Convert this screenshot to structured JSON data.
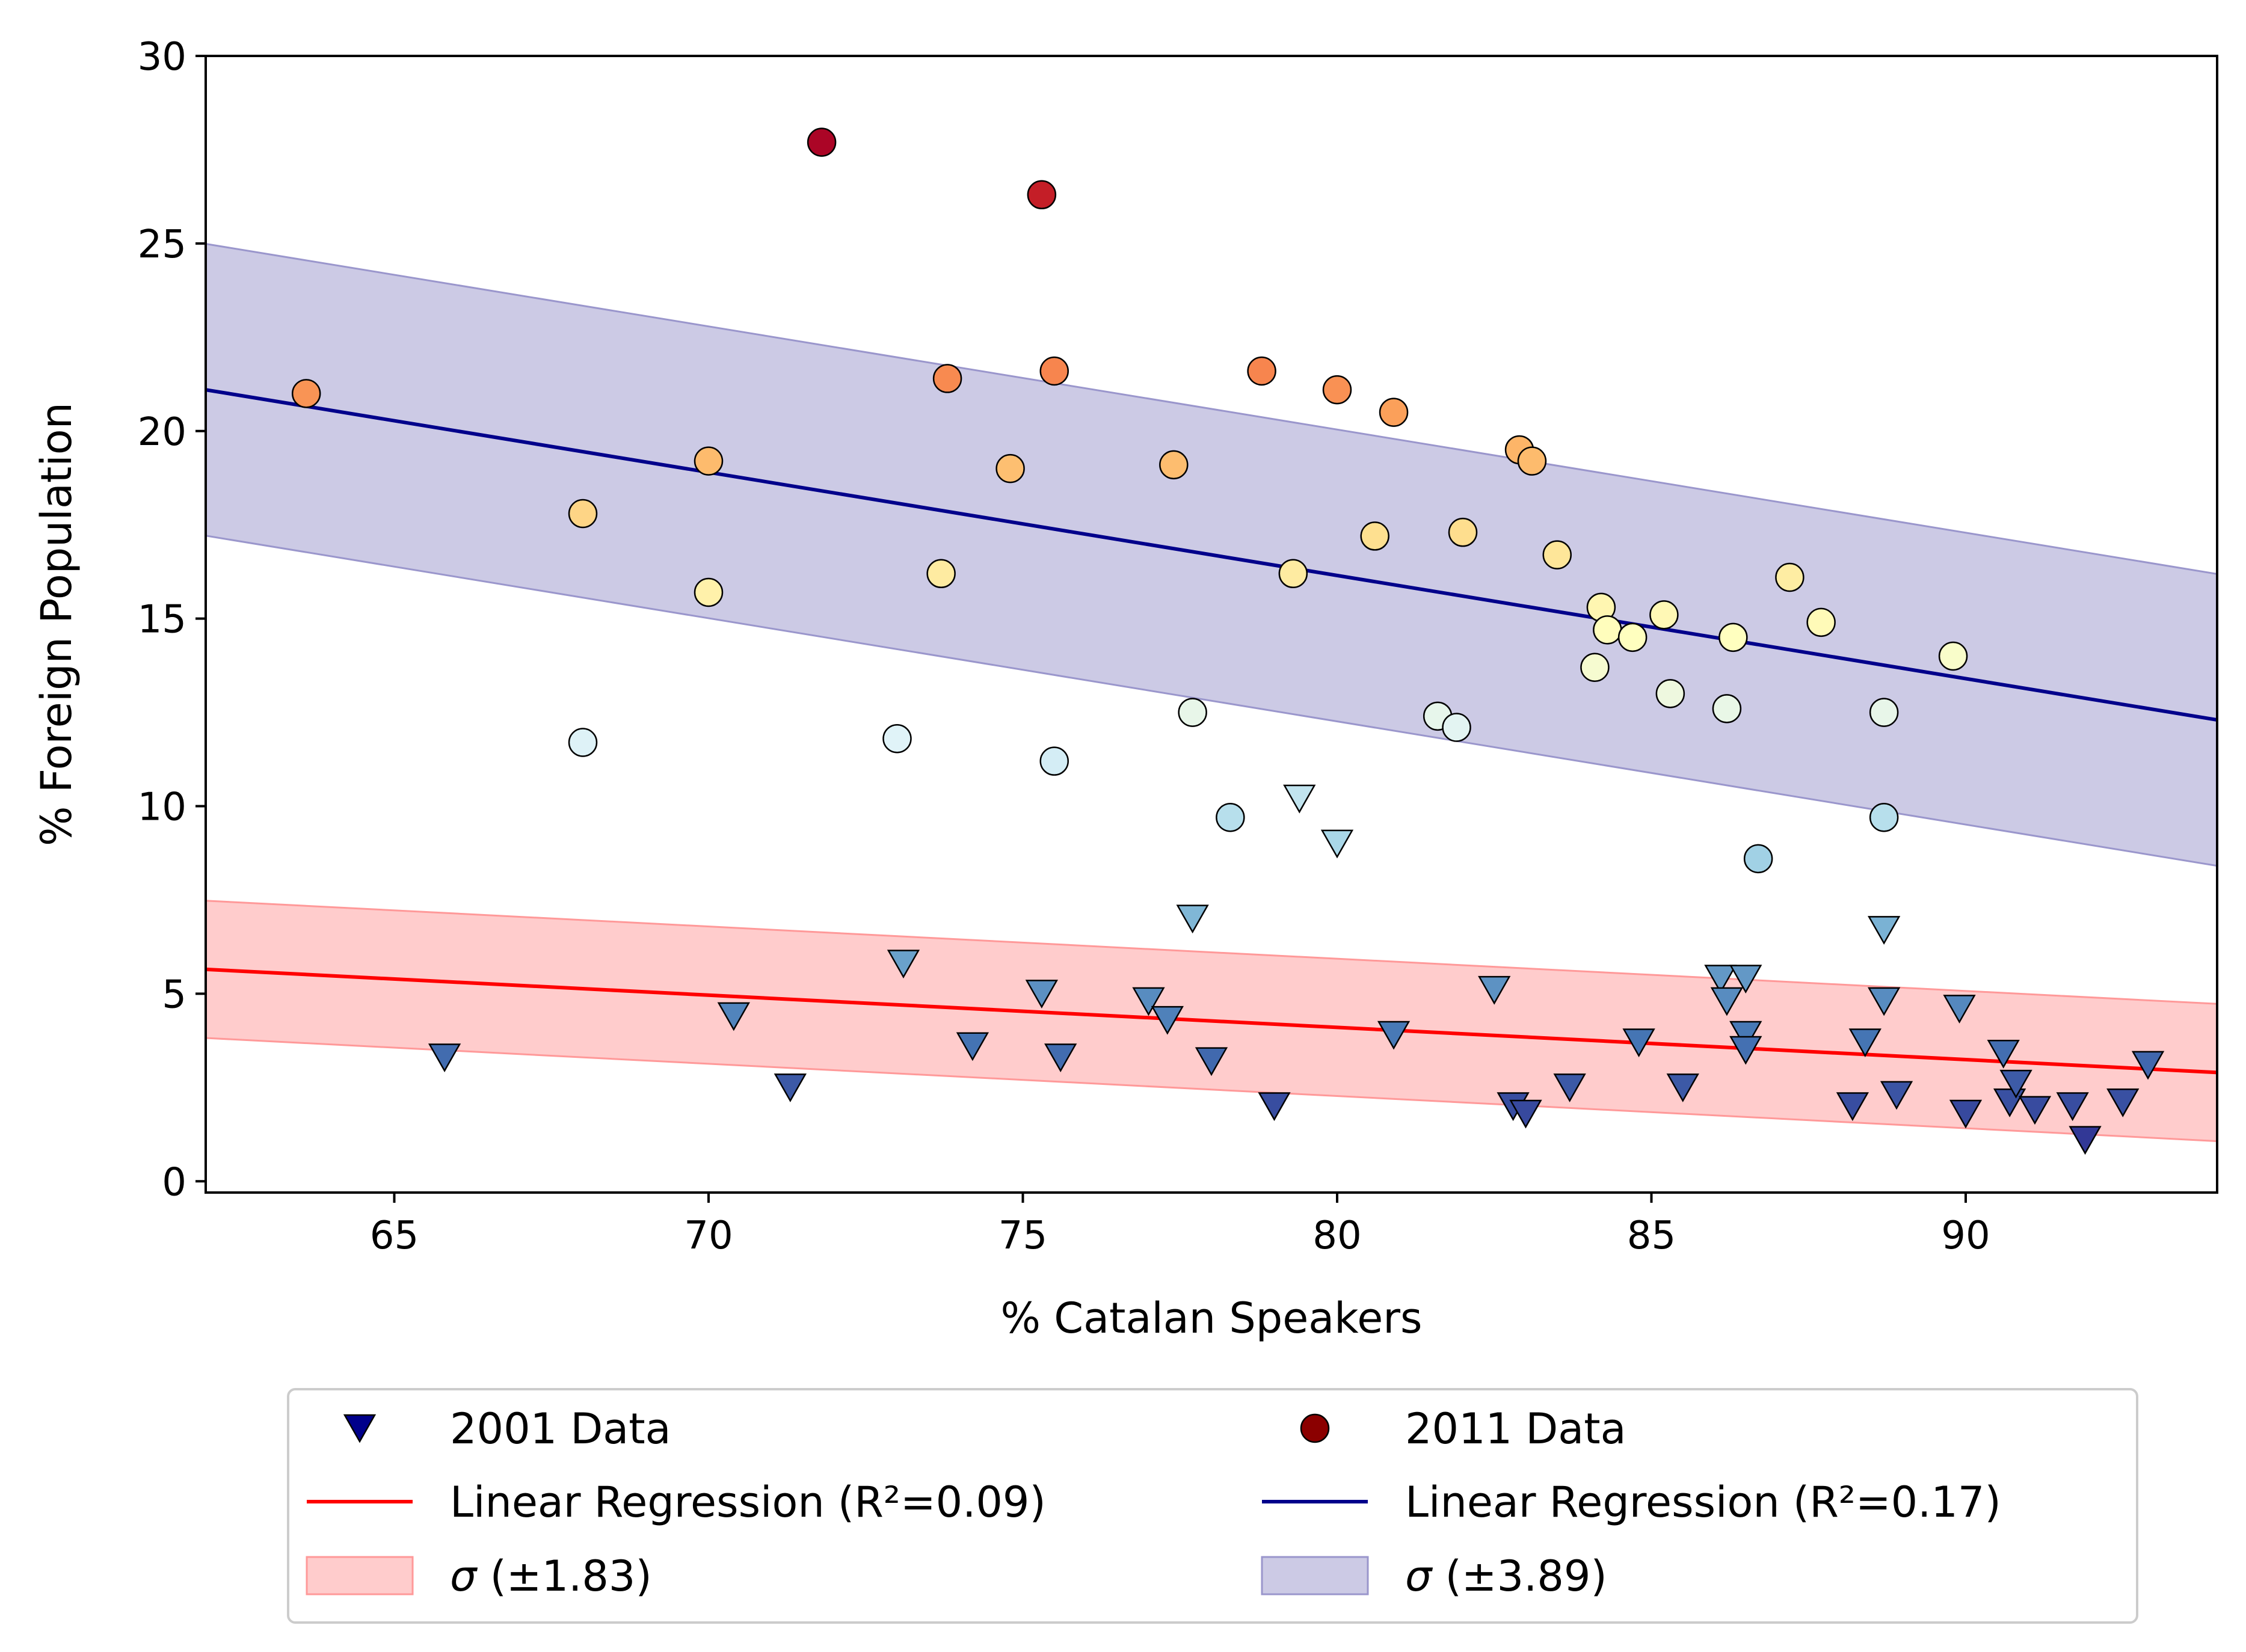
{
  "chart_data": {
    "type": "scatter",
    "xlabel": "% Catalan Speakers",
    "ylabel": "% Foreign Population",
    "xlim": [
      62,
      94
    ],
    "ylim": [
      -0.3,
      30
    ],
    "xticks": [
      65,
      70,
      75,
      80,
      85,
      90
    ],
    "yticks": [
      0,
      5,
      10,
      15,
      20,
      25,
      30
    ],
    "grid": false,
    "legend_position": "below",
    "series": [
      {
        "name": "2001 Data",
        "marker": "triangle-down",
        "legend_color": "#00008b",
        "points": [
          [
            65.8,
            3.3
          ],
          [
            70.4,
            4.4
          ],
          [
            71.3,
            2.5
          ],
          [
            73.1,
            5.8
          ],
          [
            74.2,
            3.6
          ],
          [
            75.3,
            5.0
          ],
          [
            75.6,
            3.3
          ],
          [
            77.0,
            4.8
          ],
          [
            77.3,
            4.3
          ],
          [
            77.7,
            7.0
          ],
          [
            78.0,
            3.2
          ],
          [
            79.0,
            2.0
          ],
          [
            79.4,
            10.2
          ],
          [
            80.0,
            9.0
          ],
          [
            80.9,
            3.9
          ],
          [
            82.5,
            5.1
          ],
          [
            82.8,
            2.0
          ],
          [
            83.0,
            1.8
          ],
          [
            83.7,
            2.5
          ],
          [
            84.8,
            3.7
          ],
          [
            85.5,
            2.5
          ],
          [
            86.1,
            5.4
          ],
          [
            86.2,
            4.8
          ],
          [
            86.5,
            5.4
          ],
          [
            86.5,
            3.9
          ],
          [
            86.5,
            3.5
          ],
          [
            88.2,
            2.0
          ],
          [
            88.4,
            3.7
          ],
          [
            88.7,
            6.7
          ],
          [
            88.7,
            4.8
          ],
          [
            88.9,
            2.3
          ],
          [
            89.9,
            4.6
          ],
          [
            90.0,
            1.8
          ],
          [
            90.6,
            3.4
          ],
          [
            90.7,
            2.1
          ],
          [
            90.8,
            2.6
          ],
          [
            91.1,
            1.9
          ],
          [
            91.7,
            2.0
          ],
          [
            91.9,
            1.1
          ],
          [
            92.5,
            2.1
          ],
          [
            92.9,
            3.1
          ]
        ]
      },
      {
        "name": "2011 Data",
        "marker": "circle",
        "legend_color": "#8b0000",
        "points": [
          [
            63.6,
            21.0
          ],
          [
            68.0,
            17.8
          ],
          [
            68.0,
            11.7
          ],
          [
            70.0,
            19.2
          ],
          [
            70.0,
            15.7
          ],
          [
            71.8,
            27.7
          ],
          [
            73.0,
            11.8
          ],
          [
            73.7,
            16.2
          ],
          [
            73.8,
            21.4
          ],
          [
            74.8,
            19.0
          ],
          [
            75.3,
            26.3
          ],
          [
            75.5,
            11.2
          ],
          [
            75.5,
            21.6
          ],
          [
            77.4,
            19.1
          ],
          [
            77.7,
            12.5
          ],
          [
            78.3,
            9.7
          ],
          [
            78.8,
            21.6
          ],
          [
            79.3,
            16.2
          ],
          [
            80.0,
            21.1
          ],
          [
            80.6,
            17.2
          ],
          [
            80.9,
            20.5
          ],
          [
            81.6,
            12.4
          ],
          [
            81.9,
            12.1
          ],
          [
            82.0,
            17.3
          ],
          [
            82.9,
            19.5
          ],
          [
            83.1,
            19.2
          ],
          [
            83.5,
            16.7
          ],
          [
            84.1,
            13.7
          ],
          [
            84.2,
            15.3
          ],
          [
            84.3,
            14.7
          ],
          [
            84.7,
            14.5
          ],
          [
            85.2,
            15.1
          ],
          [
            85.3,
            13.0
          ],
          [
            86.2,
            12.6
          ],
          [
            86.3,
            14.5
          ],
          [
            86.7,
            8.6
          ],
          [
            87.2,
            16.1
          ],
          [
            87.7,
            14.9
          ],
          [
            88.7,
            12.5
          ],
          [
            88.7,
            9.7
          ],
          [
            89.8,
            14.0
          ]
        ]
      }
    ],
    "regressions": [
      {
        "name": "Linear Regression (R²=0.09)",
        "color": "#ff0000",
        "x": [
          62,
          94
        ],
        "y": [
          5.65,
          2.9
        ],
        "sigma": 1.83,
        "band_label": "σ (±1.83)",
        "band_color": "#ff9999"
      },
      {
        "name": "Linear Regression (R²=0.17)",
        "color": "#00008b",
        "x": [
          62,
          94
        ],
        "y": [
          21.1,
          12.3
        ],
        "sigma": 3.89,
        "band_label": "σ (±3.89)",
        "band_color": "#9a96cc"
      }
    ],
    "colormap": {
      "name": "RdYlBu_r",
      "domain": [
        1,
        28
      ],
      "stops": [
        "#313695",
        "#4575b4",
        "#74add1",
        "#abd9e9",
        "#e0f3f8",
        "#ffffbf",
        "#fee090",
        "#fdae61",
        "#f46d43",
        "#d73027",
        "#a50026"
      ]
    },
    "legend": {
      "left_column": [
        {
          "kind": "marker-triangle",
          "color": "#00008b",
          "label": "2001 Data"
        },
        {
          "kind": "line",
          "color": "#ff0000",
          "label": "Linear Regression (R²=0.09)"
        },
        {
          "kind": "patch",
          "color": "#ff9999",
          "label_symbol": "σ",
          "label_rest": " (±1.83)"
        }
      ],
      "right_column": [
        {
          "kind": "marker-circle",
          "color": "#8b0000",
          "label": "2011 Data"
        },
        {
          "kind": "line",
          "color": "#00008b",
          "label": "Linear Regression (R²=0.17)"
        },
        {
          "kind": "patch",
          "color": "#9a96cc",
          "label_symbol": "σ",
          "label_rest": " (±3.89)"
        }
      ]
    }
  }
}
